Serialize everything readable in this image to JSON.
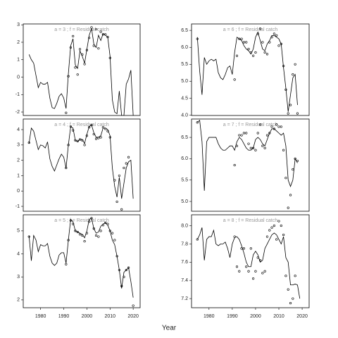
{
  "xlabel": "Year",
  "chart_data": [
    {
      "type": "line",
      "title": "a = 3 ; f = Residual catch",
      "xlim": [
        1972.5,
        2023
      ],
      "ylim": [
        -2.2,
        3.05
      ],
      "yticks": [
        -2,
        -1,
        0,
        1,
        2,
        3
      ],
      "line": {
        "x": [
          1975,
          1976,
          1977,
          1978,
          1979,
          1980,
          1981,
          1982,
          1983,
          1984,
          1985,
          1986,
          1987,
          1988,
          1989,
          1990,
          1991,
          1992,
          1993,
          1994,
          1995,
          1996,
          1997,
          1998,
          1999,
          2000,
          2001,
          2002,
          2003,
          2004,
          2005,
          2006,
          2007,
          2008,
          2009,
          2010,
          2011,
          2012,
          2013,
          2014,
          2015,
          2016,
          2017,
          2018,
          2019,
          2020
        ],
        "values": [
          1.3,
          1.0,
          0.8,
          0.1,
          -0.6,
          -0.3,
          -0.4,
          -0.4,
          -0.3,
          -1.2,
          -1.75,
          -1.8,
          -1.5,
          -1.1,
          -0.95,
          -1.2,
          -1.8,
          0.2,
          1.8,
          2.2,
          0.7,
          0.5,
          1.5,
          1.2,
          0.8,
          1.6,
          2.4,
          2.8,
          1.9,
          1.7,
          2.4,
          2.1,
          2.5,
          2.4,
          2.3,
          1.2,
          -1.3,
          -2.0,
          -2.1,
          -0.8,
          -2.2,
          -2.2,
          -0.4,
          -0.1,
          0.4,
          -2.2
        ]
      },
      "points": {
        "x": [
          1991,
          1992,
          1993,
          1994,
          1995,
          1996,
          1997,
          1998,
          1999,
          2000,
          2001,
          2002,
          2003,
          2004,
          2005,
          2006,
          2007,
          2008,
          2009,
          2010
        ],
        "values": [
          -2.05,
          0.05,
          1.7,
          2.35,
          0.55,
          0.15,
          1.6,
          1.3,
          0.75,
          1.55,
          2.25,
          2.85,
          1.8,
          2.75,
          1.65,
          2.6,
          2.45,
          2.45,
          2.3,
          1.1
        ]
      }
    },
    {
      "type": "line",
      "title": "a = 6 ; f = Residual catch",
      "xlim": [
        1972.5,
        2023
      ],
      "ylim": [
        3.99,
        6.69
      ],
      "yticks": [
        {
          "value": 4,
          "label": "4.0"
        },
        4.5,
        {
          "value": 5,
          "label": "5.0"
        },
        5.5,
        {
          "value": 6,
          "label": "6.0"
        },
        6.5
      ],
      "line": {
        "x": [
          1975,
          1976,
          1977,
          1978,
          1979,
          1980,
          1981,
          1982,
          1983,
          1984,
          1985,
          1986,
          1987,
          1988,
          1989,
          1990,
          1991,
          1992,
          1993,
          1994,
          1995,
          1996,
          1997,
          1998,
          1999,
          2000,
          2001,
          2002,
          2003,
          2004,
          2005,
          2006,
          2007,
          2008,
          2009,
          2010,
          2011,
          2012,
          2013,
          2014,
          2015,
          2016,
          2017,
          2018
        ],
        "values": [
          6.3,
          5.3,
          4.6,
          5.7,
          5.5,
          5.6,
          5.65,
          5.6,
          5.65,
          5.25,
          5.1,
          5.05,
          5.2,
          5.4,
          5.45,
          5.2,
          5.85,
          6.3,
          6.25,
          6.2,
          6.05,
          5.95,
          5.9,
          5.8,
          5.95,
          6.3,
          6.45,
          6.2,
          5.95,
          5.9,
          6.1,
          6.2,
          6.35,
          6.35,
          6.3,
          6.25,
          6.1,
          5.4,
          4.8,
          4.1,
          4.6,
          5.1,
          5.2,
          4.3
        ]
      },
      "points": {
        "x": [
          1975,
          1991,
          1992,
          1993,
          1994,
          1995,
          1996,
          1997,
          1998,
          1999,
          2000,
          2001,
          2002,
          2003,
          2004,
          2005,
          2006,
          2007,
          2008,
          2009,
          2010,
          2011,
          2012,
          2013,
          2014,
          2015,
          2016,
          2017,
          2018
        ],
        "values": [
          6.25,
          5.05,
          5.75,
          6.25,
          6.25,
          6.15,
          6.15,
          5.95,
          5.85,
          5.75,
          5.85,
          6.4,
          6.55,
          6.15,
          5.85,
          5.8,
          6.15,
          6.3,
          6.4,
          6.35,
          6.05,
          6.1,
          5.45,
          4.75,
          4.05,
          4.3,
          5.2,
          5.5,
          4.05
        ]
      }
    },
    {
      "type": "line",
      "title": "a = 4 ; f = Residual catch",
      "xlim": [
        1972.5,
        2023
      ],
      "ylim": [
        -1.32,
        4.69
      ],
      "yticks": [
        -1,
        0,
        1,
        2,
        3,
        4
      ],
      "line": {
        "x": [
          1975,
          1976,
          1977,
          1978,
          1979,
          1980,
          1981,
          1982,
          1983,
          1984,
          1985,
          1986,
          1987,
          1988,
          1989,
          1990,
          1991,
          1992,
          1993,
          1994,
          1995,
          1996,
          1997,
          1998,
          1999,
          2000,
          2001,
          2002,
          2003,
          2004,
          2005,
          2006,
          2007,
          2008,
          2009,
          2010,
          2011,
          2012,
          2013,
          2014,
          2015,
          2016,
          2017,
          2018,
          2019,
          2020
        ],
        "values": [
          3.1,
          4.1,
          3.9,
          3.3,
          2.7,
          3.0,
          2.95,
          2.8,
          3.2,
          2.1,
          1.6,
          1.3,
          1.7,
          2.1,
          2.4,
          2.2,
          1.5,
          3.0,
          4.2,
          4.1,
          3.3,
          3.2,
          3.4,
          3.35,
          3.1,
          3.7,
          4.2,
          4.3,
          3.8,
          3.5,
          3.5,
          3.6,
          4.1,
          4.1,
          4.0,
          3.6,
          1.5,
          0.3,
          -0.4,
          0.9,
          -0.5,
          0.5,
          1.5,
          1.9,
          2.0,
          -0.5
        ]
      },
      "points": {
        "x": [
          1975,
          1991,
          1992,
          1993,
          1994,
          1995,
          1996,
          1997,
          1998,
          1999,
          2000,
          2001,
          2002,
          2003,
          2004,
          2005,
          2006,
          2007,
          2008,
          2009,
          2010,
          2012,
          2013,
          2014,
          2015,
          2016,
          2017,
          2018
        ],
        "values": [
          3.15,
          1.5,
          3.0,
          4.2,
          3.95,
          3.3,
          3.25,
          3.35,
          3.3,
          3.0,
          3.6,
          4.15,
          4.3,
          3.7,
          3.4,
          3.45,
          3.5,
          4.15,
          4.05,
          3.9,
          3.5,
          0.7,
          -0.7,
          1.0,
          -1.2,
          1.5,
          1.8,
          2.2
        ]
      }
    },
    {
      "type": "line",
      "title": "a = 7 ; f = Residual catch",
      "xlim": [
        1972.5,
        2023
      ],
      "ylim": [
        4.77,
        6.93
      ],
      "yticks": [
        {
          "value": 5,
          "label": "5.0"
        },
        5.5,
        {
          "value": 6,
          "label": "6.0"
        },
        6.5
      ],
      "line": {
        "x": [
          1975,
          1976,
          1977,
          1978,
          1979,
          1980,
          1981,
          1982,
          1983,
          1984,
          1985,
          1986,
          1987,
          1988,
          1989,
          1990,
          1991,
          1992,
          1993,
          1994,
          1995,
          1996,
          1997,
          1998,
          1999,
          2000,
          2001,
          2002,
          2003,
          2004,
          2005,
          2006,
          2007,
          2008,
          2009,
          2010,
          2011,
          2012,
          2013,
          2014,
          2015,
          2016,
          2017,
          2018
        ],
        "values": [
          6.85,
          6.9,
          6.4,
          5.25,
          6.4,
          6.5,
          6.5,
          6.5,
          6.5,
          6.35,
          6.25,
          6.2,
          6.2,
          6.25,
          6.3,
          6.3,
          6.2,
          6.4,
          6.5,
          6.45,
          6.35,
          6.25,
          6.2,
          6.2,
          6.25,
          6.45,
          6.5,
          6.45,
          6.35,
          6.3,
          6.45,
          6.6,
          6.7,
          6.7,
          6.65,
          6.6,
          6.55,
          6.6,
          6.3,
          5.5,
          5.35,
          5.5,
          6.0,
          5.9
        ]
      },
      "points": {
        "x": [
          1975,
          1991,
          1992,
          1993,
          1994,
          1995,
          1996,
          1997,
          1998,
          1999,
          2000,
          2001,
          2002,
          2003,
          2004,
          2005,
          2006,
          2007,
          2008,
          2009,
          2010,
          2011,
          2012,
          2013,
          2014,
          2015,
          2016,
          2017,
          2018
        ],
        "values": [
          6.85,
          5.85,
          6.3,
          6.55,
          6.55,
          6.6,
          6.6,
          6.35,
          6.25,
          6.25,
          6.2,
          6.6,
          6.8,
          6.3,
          6.25,
          6.55,
          6.6,
          6.75,
          6.7,
          6.8,
          6.75,
          6.75,
          6.2,
          5.55,
          4.85,
          5.15,
          5.75,
          6.0,
          5.95
        ]
      }
    },
    {
      "type": "line",
      "title": "a = 5 ; f = Residual catch",
      "xlim": [
        1972.5,
        2023
      ],
      "ylim": [
        1.66,
        5.7
      ],
      "yticks": [
        2,
        3,
        4,
        5
      ],
      "xticks": [
        1980,
        1990,
        2000,
        2010,
        2020
      ],
      "line": {
        "x": [
          1975,
          1976,
          1977,
          1978,
          1979,
          1980,
          1981,
          1982,
          1983,
          1984,
          1985,
          1986,
          1987,
          1988,
          1989,
          1990,
          1991,
          1992,
          1993,
          1994,
          1995,
          1996,
          1997,
          1998,
          1999,
          2000,
          2001,
          2002,
          2003,
          2004,
          2005,
          2006,
          2007,
          2008,
          2009,
          2010,
          2011,
          2012,
          2013,
          2014,
          2015,
          2016,
          2017,
          2018,
          2019,
          2020
        ],
        "values": [
          4.8,
          3.7,
          4.8,
          4.6,
          4.1,
          4.4,
          4.35,
          4.35,
          4.45,
          3.9,
          3.6,
          3.5,
          3.6,
          3.95,
          4.05,
          4.05,
          3.6,
          4.6,
          5.5,
          5.4,
          5.0,
          4.95,
          4.9,
          4.85,
          4.7,
          5.0,
          5.5,
          5.55,
          5.1,
          4.9,
          4.95,
          5.2,
          5.3,
          5.35,
          5.25,
          5.0,
          4.6,
          4.4,
          3.9,
          3.3,
          2.5,
          3.2,
          3.3,
          3.4,
          2.8,
          2.1
        ]
      },
      "points": {
        "x": [
          1975,
          1991,
          1992,
          1993,
          1994,
          1995,
          1996,
          1997,
          1998,
          1999,
          2000,
          2001,
          2002,
          2003,
          2004,
          2005,
          2006,
          2007,
          2008,
          2009,
          2010,
          2011,
          2012,
          2013,
          2014,
          2015,
          2016,
          2017,
          2018,
          2020
        ],
        "values": [
          4.75,
          3.55,
          4.6,
          5.45,
          5.3,
          5.0,
          4.95,
          4.85,
          4.8,
          4.55,
          4.9,
          5.4,
          5.55,
          5.1,
          4.8,
          4.75,
          5.0,
          5.25,
          5.35,
          5.3,
          5.0,
          4.9,
          4.6,
          3.9,
          3.3,
          2.6,
          3.0,
          3.3,
          3.4,
          1.75
        ]
      }
    },
    {
      "type": "line",
      "title": "a = 8 ; f = Residual catch",
      "xlim": [
        1972.5,
        2023
      ],
      "ylim": [
        7.1,
        8.12
      ],
      "yticks": [
        7.2,
        7.4,
        7.6,
        7.8,
        {
          "value": 8,
          "label": "8.0"
        }
      ],
      "xticks": [
        1980,
        1990,
        2000,
        2010,
        2020
      ],
      "line": {
        "x": [
          1975,
          1976,
          1977,
          1978,
          1979,
          1980,
          1981,
          1982,
          1983,
          1984,
          1985,
          1986,
          1987,
          1988,
          1989,
          1990,
          1991,
          1992,
          1993,
          1994,
          1995,
          1996,
          1997,
          1998,
          1999,
          2000,
          2001,
          2002,
          2003,
          2004,
          2005,
          2006,
          2007,
          2008,
          2009,
          2010,
          2011,
          2012,
          2013,
          2014,
          2015,
          2016,
          2017,
          2018,
          2019
        ],
        "values": [
          7.85,
          7.9,
          7.98,
          7.62,
          7.85,
          7.88,
          7.88,
          7.95,
          7.8,
          7.78,
          7.8,
          7.8,
          7.82,
          7.75,
          7.65,
          7.8,
          7.87,
          7.88,
          7.85,
          7.78,
          7.7,
          7.6,
          7.55,
          7.55,
          7.68,
          7.72,
          7.68,
          7.6,
          7.62,
          7.75,
          7.8,
          7.85,
          7.9,
          7.92,
          7.9,
          7.85,
          7.8,
          7.88,
          7.65,
          7.6,
          7.35,
          7.35,
          7.36,
          7.35,
          7.2
        ]
      },
      "points": {
        "x": [
          1975,
          1991,
          1992,
          1993,
          1994,
          1995,
          1996,
          1997,
          1998,
          1999,
          2000,
          2001,
          2002,
          2003,
          2004,
          2005,
          2006,
          2007,
          2008,
          2009,
          2010,
          2011,
          2012,
          2013,
          2014,
          2015,
          2016,
          2017
        ],
        "values": [
          7.85,
          7.88,
          7.55,
          7.5,
          7.75,
          7.75,
          7.55,
          7.5,
          7.75,
          7.42,
          7.5,
          7.65,
          7.62,
          7.48,
          7.5,
          7.88,
          7.95,
          7.98,
          8.0,
          7.85,
          8.05,
          8.0,
          7.9,
          7.45,
          7.3,
          7.15,
          7.2,
          7.45
        ]
      }
    }
  ]
}
